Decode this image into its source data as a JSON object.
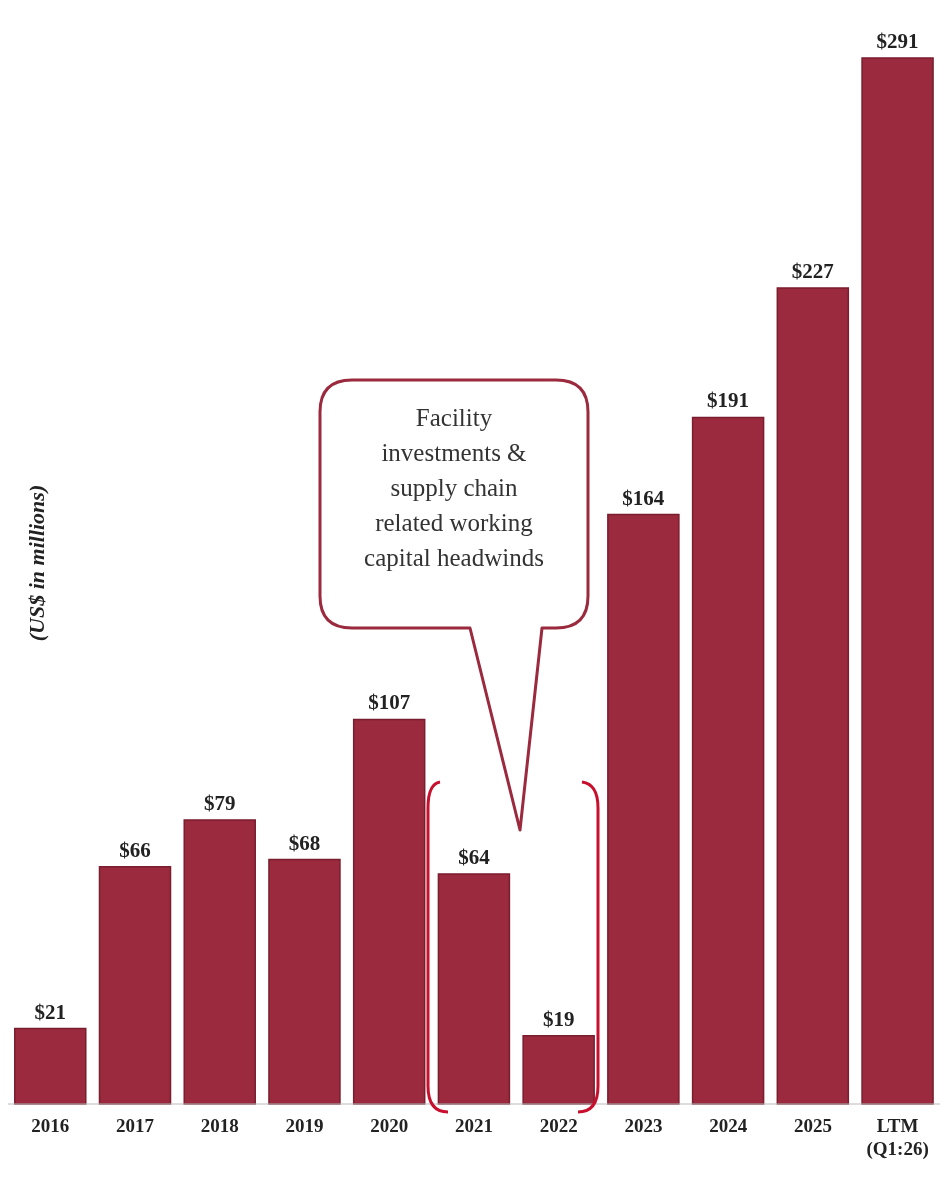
{
  "chart_data": {
    "type": "bar",
    "ylabel": "(US$ in millions)",
    "categories": [
      "2016",
      "2017",
      "2018",
      "2019",
      "2020",
      "2021",
      "2022",
      "2023",
      "2024",
      "2025",
      "LTM\n(Q1:26)"
    ],
    "values": [
      21,
      66,
      79,
      68,
      107,
      64,
      19,
      164,
      191,
      227,
      291
    ],
    "value_labels": [
      "$21",
      "$66",
      "$79",
      "$68",
      "$107",
      "$64",
      "$19",
      "$164",
      "$191",
      "$227",
      "$291"
    ],
    "color": "#9b2a3e",
    "annotations": [
      "Facility investments & supply chain related working capital headwinds"
    ],
    "grid": false,
    "legend": false
  }
}
